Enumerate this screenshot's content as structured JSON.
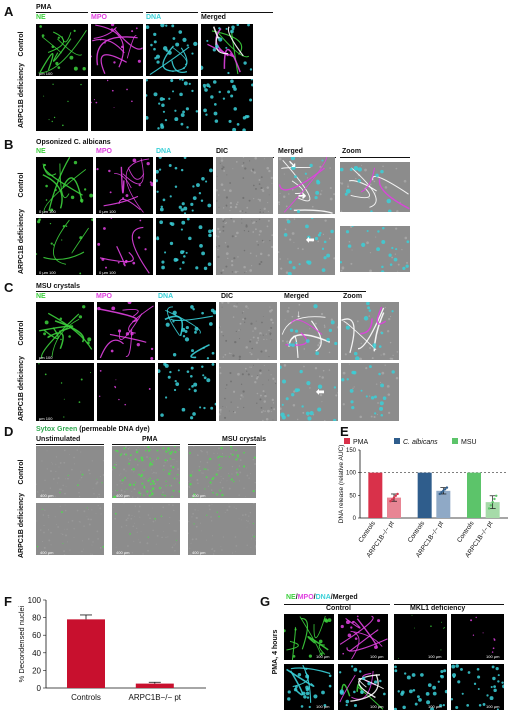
{
  "panels": {
    "A": {
      "letter": "A",
      "title": "PMA",
      "columns": [
        "NE",
        "MPO",
        "DNA",
        "Merged"
      ],
      "rows": [
        "Control",
        "ARPC1B deficiency"
      ],
      "scale": "μm 100"
    },
    "B": {
      "letter": "B",
      "title": "Opsonized C. albicans",
      "columns": [
        "NE",
        "MPO",
        "DNA",
        "DIC",
        "Merged",
        "Zoom"
      ],
      "rows": [
        "Control",
        "ARPC1B deficiency"
      ],
      "scale": "0    μm 100"
    },
    "C": {
      "letter": "C",
      "title": "MSU crystals",
      "columns": [
        "NE",
        "MPO",
        "DNA",
        "DIC",
        "Merged",
        "Zoom"
      ],
      "rows": [
        "Control",
        "ARPC1B deficiency"
      ],
      "scale": "μm 100"
    },
    "D": {
      "letter": "D",
      "title_dye": "Sytox Green",
      "title_rest": "(permeable DNA dye)",
      "columns": [
        "Unstimulated",
        "PMA",
        "MSU crystals"
      ],
      "rows": [
        "Control",
        "ARPC1B deficiency"
      ],
      "scale": "400 μm"
    },
    "E": {
      "letter": "E"
    },
    "F": {
      "letter": "F"
    },
    "G": {
      "letter": "G",
      "title_parts": [
        "NE",
        "/",
        "MPO",
        "/",
        "DNA",
        "/Merged"
      ],
      "columns": [
        "Control",
        "MKL1 deficiency"
      ],
      "row": "PMA, 4 hours",
      "scale": "100 μm"
    }
  },
  "chart_data": [
    {
      "panel": "E",
      "type": "bar",
      "ylabel": "DNA release (relative AUC)",
      "ylim": [
        0,
        150
      ],
      "yticks": [
        0,
        50,
        100,
        150
      ],
      "reference_line": 100,
      "legend": [
        "PMA",
        "C. albicans",
        "MSU"
      ],
      "legend_colors": [
        "#d9314a",
        "#2f5d8c",
        "#5cc46a"
      ],
      "categories": [
        "Controls",
        "ARPC1B−/− pt",
        "Controls",
        "ARPC1B−/− pt",
        "Controls",
        "ARPC1B−/− pt"
      ],
      "values": [
        100,
        45,
        100,
        60,
        100,
        35
      ],
      "errors": [
        0,
        8,
        0,
        7,
        0,
        14
      ],
      "bar_colors": [
        "#d9314a",
        "#e88594",
        "#2f5d8c",
        "#8fa9c6",
        "#5cc46a",
        "#a6dba9"
      ]
    },
    {
      "panel": "F",
      "type": "bar",
      "ylabel": "% Decondensed nuclei",
      "ylim": [
        0,
        100
      ],
      "yticks": [
        0,
        20,
        40,
        60,
        80,
        100
      ],
      "categories": [
        "Controls",
        "ARPC1B−/− pt"
      ],
      "values": [
        78,
        5
      ],
      "errors": [
        5,
        1.5
      ],
      "bar_color": "#c8102e"
    }
  ],
  "colors": {
    "ne": "#3cd03c",
    "mpo": "#e040e0",
    "dna": "#3ad0d8",
    "dic": "#8c8c8c"
  }
}
